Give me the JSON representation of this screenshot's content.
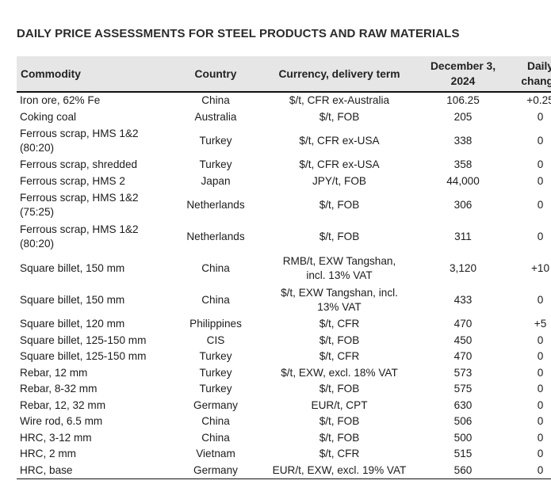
{
  "title": "DAILY PRICE ASSESSMENTS FOR STEEL PRODUCTS AND RAW MATERIALS",
  "columns": {
    "commodity": "Commodity",
    "country": "Country",
    "term": "Currency, delivery term",
    "date_line1": "December 3,",
    "date_line2": "2024",
    "change_line1": "Daily",
    "change_line2": "change"
  },
  "rows": [
    {
      "commodity_l1": "Iron ore, 62% Fe",
      "commodity_l2": "",
      "country": "China",
      "term_l1": "$/t, CFR ex-Australia",
      "term_l2": "",
      "price": "106.25",
      "change": "+0.25"
    },
    {
      "commodity_l1": "Coking coal",
      "commodity_l2": "",
      "country": "Australia",
      "term_l1": "$/t, FOB",
      "term_l2": "",
      "price": "205",
      "change": "0"
    },
    {
      "commodity_l1": "Ferrous scrap, HMS 1&2",
      "commodity_l2": "(80:20)",
      "country": "Turkey",
      "term_l1": "$/t, CFR ex-USA",
      "term_l2": "",
      "price": "338",
      "change": "0"
    },
    {
      "commodity_l1": "Ferrous scrap, shredded",
      "commodity_l2": "",
      "country": "Turkey",
      "term_l1": "$/t, CFR ex-USA",
      "term_l2": "",
      "price": "358",
      "change": "0"
    },
    {
      "commodity_l1": "Ferrous scrap, HMS 2",
      "commodity_l2": "",
      "country": "Japan",
      "term_l1": "JPY/t, FOB",
      "term_l2": "",
      "price": "44,000",
      "change": "0"
    },
    {
      "commodity_l1": "Ferrous scrap, HMS 1&2",
      "commodity_l2": "(75:25)",
      "country": "Netherlands",
      "term_l1": "$/t, FOB",
      "term_l2": "",
      "price": "306",
      "change": "0"
    },
    {
      "commodity_l1": "Ferrous scrap, HMS 1&2",
      "commodity_l2": "(80:20)",
      "country": "Netherlands",
      "term_l1": "$/t, FOB",
      "term_l2": "",
      "price": "311",
      "change": "0"
    },
    {
      "commodity_l1": "Square billet, 150 mm",
      "commodity_l2": "",
      "country": "China",
      "term_l1": "RMB/t, EXW Tangshan,",
      "term_l2": "incl. 13% VAT",
      "price": "3,120",
      "change": "+10"
    },
    {
      "commodity_l1": "Square billet, 150 mm",
      "commodity_l2": "",
      "country": "China",
      "term_l1": "$/t, EXW Tangshan, incl.",
      "term_l2": "13% VAT",
      "price": "433",
      "change": "0"
    },
    {
      "commodity_l1": "Square billet, 120 mm",
      "commodity_l2": "",
      "country": "Philippines",
      "term_l1": "$/t, CFR",
      "term_l2": "",
      "price": "470",
      "change": "+5"
    },
    {
      "commodity_l1": "Square billet, 125-150 mm",
      "commodity_l2": "",
      "country": "CIS",
      "term_l1": "$/t, FOB",
      "term_l2": "",
      "price": "450",
      "change": "0"
    },
    {
      "commodity_l1": "Square billet, 125-150 mm",
      "commodity_l2": "",
      "country": "Turkey",
      "term_l1": "$/t, CFR",
      "term_l2": "",
      "price": "470",
      "change": "0"
    },
    {
      "commodity_l1": "Rebar, 12 mm",
      "commodity_l2": "",
      "country": "Turkey",
      "term_l1": "$/t, EXW, excl. 18% VAT",
      "term_l2": "",
      "price": "573",
      "change": "0"
    },
    {
      "commodity_l1": "Rebar, 8-32 mm",
      "commodity_l2": "",
      "country": "Turkey",
      "term_l1": "$/t, FOB",
      "term_l2": "",
      "price": "575",
      "change": "0"
    },
    {
      "commodity_l1": "Rebar, 12, 32 mm",
      "commodity_l2": "",
      "country": "Germany",
      "term_l1": "EUR/t, CPT",
      "term_l2": "",
      "price": "630",
      "change": "0"
    },
    {
      "commodity_l1": "Wire rod, 6.5 mm",
      "commodity_l2": "",
      "country": "China",
      "term_l1": "$/t, FOB",
      "term_l2": "",
      "price": "506",
      "change": "0"
    },
    {
      "commodity_l1": "HRC, 3-12 mm",
      "commodity_l2": "",
      "country": "China",
      "term_l1": "$/t, FOB",
      "term_l2": "",
      "price": "500",
      "change": "0"
    },
    {
      "commodity_l1": "HRC, 2 mm",
      "commodity_l2": "",
      "country": "Vietnam",
      "term_l1": "$/t, CFR",
      "term_l2": "",
      "price": "515",
      "change": "0"
    },
    {
      "commodity_l1": "HRC, base",
      "commodity_l2": "",
      "country": "Germany",
      "term_l1": "EUR/t, EXW, excl. 19% VAT",
      "term_l2": "",
      "price": "560",
      "change": "0"
    }
  ]
}
